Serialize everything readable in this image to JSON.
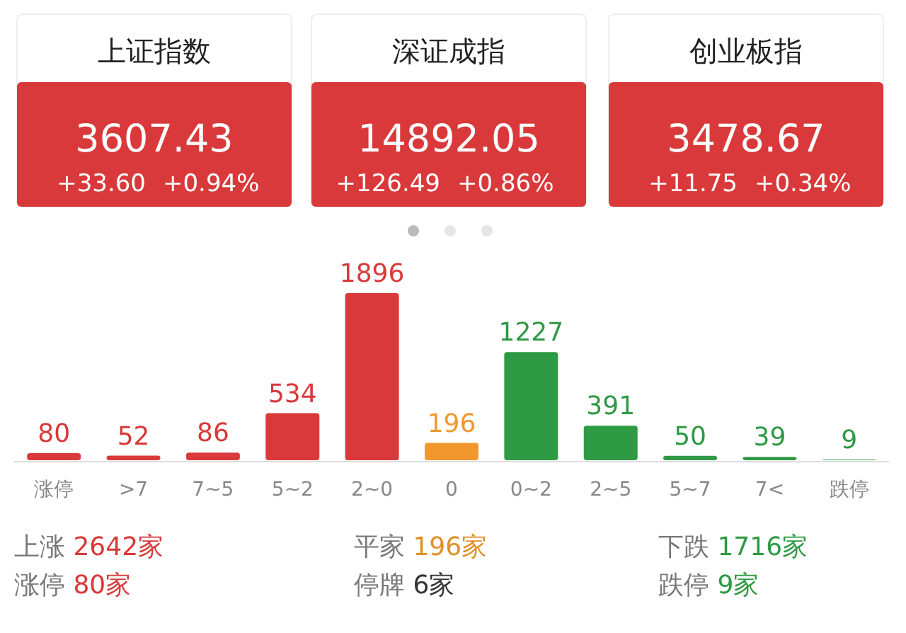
{
  "chart_data": [
    {
      "type": "other",
      "annotations": [
        "上证指数",
        "3607.43",
        "+33.60",
        "+0.94%",
        "深证成指",
        "14892.05",
        "+126.49",
        "+0.86%",
        "创业板指",
        "3478.67",
        "+11.75",
        "+0.34%"
      ]
    },
    {
      "type": "bar",
      "categories": [
        "涨停",
        ">7",
        "7~5",
        "5~2",
        "2~0",
        "0",
        "0~2",
        "2~5",
        "5~7",
        "7<",
        "跌停"
      ],
      "values": [
        80,
        52,
        86,
        534,
        1896,
        196,
        1227,
        391,
        50,
        39,
        9
      ],
      "colors": [
        "#d9393a",
        "#d9393a",
        "#d9393a",
        "#d9393a",
        "#d9393a",
        "#f0982e",
        "#2f9a44",
        "#2f9a44",
        "#2f9a44",
        "#2f9a44",
        "#2f9a44"
      ],
      "data_labels": true,
      "annotations": [
        "上涨 2642家",
        "平家 196家",
        "下跌 1716家",
        "涨停 80家",
        "停牌 6家",
        "跌停 9家"
      ]
    }
  ]
}
